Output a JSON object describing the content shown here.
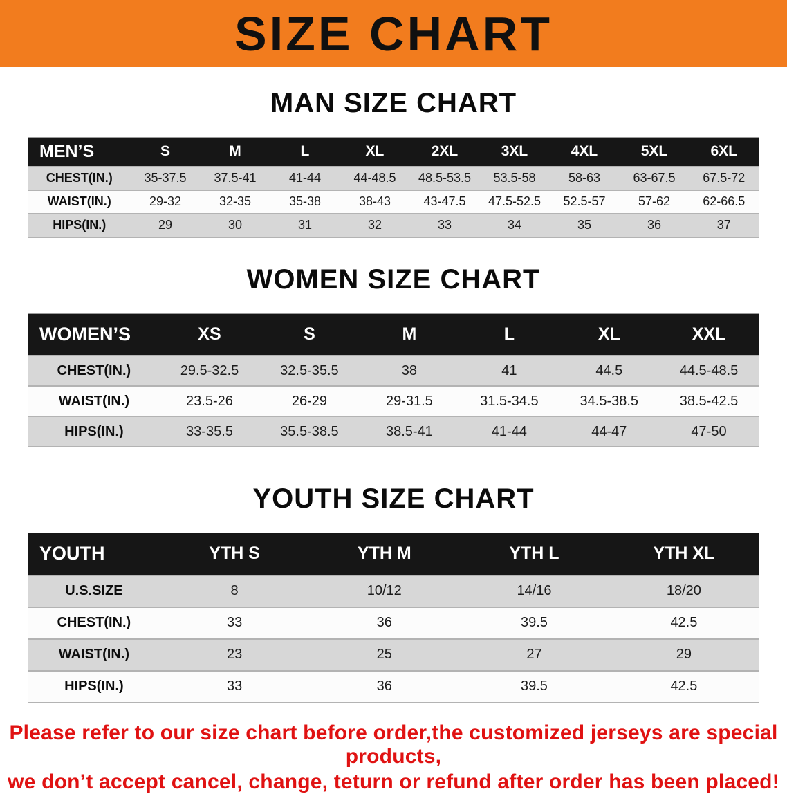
{
  "banner": {
    "title": "SIZE CHART"
  },
  "colors": {
    "banner_bg": "#f27c1e",
    "table_header_bg": "#161616",
    "row_shaded": "#d7d7d7",
    "row_plain": "#fcfcfc",
    "disclaimer_text": "#e01212"
  },
  "chart_data": [
    {
      "type": "table",
      "title": "MAN SIZE CHART",
      "header_label": "MEN’S",
      "columns": [
        "S",
        "M",
        "L",
        "XL",
        "2XL",
        "3XL",
        "4XL",
        "5XL",
        "6XL"
      ],
      "rows": [
        {
          "label": "CHEST(IN.)",
          "values": [
            "35-37.5",
            "37.5-41",
            "41-44",
            "44-48.5",
            "48.5-53.5",
            "53.5-58",
            "58-63",
            "63-67.5",
            "67.5-72"
          ]
        },
        {
          "label": "WAIST(IN.)",
          "values": [
            "29-32",
            "32-35",
            "35-38",
            "38-43",
            "43-47.5",
            "47.5-52.5",
            "52.5-57",
            "57-62",
            "62-66.5"
          ]
        },
        {
          "label": "HIPS(IN.)",
          "values": [
            "29",
            "30",
            "31",
            "32",
            "33",
            "34",
            "35",
            "36",
            "37"
          ]
        }
      ]
    },
    {
      "type": "table",
      "title": "WOMEN SIZE CHART",
      "header_label": "WOMEN’S",
      "columns": [
        "XS",
        "S",
        "M",
        "L",
        "XL",
        "XXL"
      ],
      "rows": [
        {
          "label": "CHEST(IN.)",
          "values": [
            "29.5-32.5",
            "32.5-35.5",
            "38",
            "41",
            "44.5",
            "44.5-48.5"
          ]
        },
        {
          "label": "WAIST(IN.)",
          "values": [
            "23.5-26",
            "26-29",
            "29-31.5",
            "31.5-34.5",
            "34.5-38.5",
            "38.5-42.5"
          ]
        },
        {
          "label": "HIPS(IN.)",
          "values": [
            "33-35.5",
            "35.5-38.5",
            "38.5-41",
            "41-44",
            "44-47",
            "47-50"
          ]
        }
      ]
    },
    {
      "type": "table",
      "title": "YOUTH SIZE CHART",
      "header_label": "YOUTH",
      "columns": [
        "YTH S",
        "YTH M",
        "YTH L",
        "YTH XL"
      ],
      "rows": [
        {
          "label": "U.S.SIZE",
          "values": [
            "8",
            "10/12",
            "14/16",
            "18/20"
          ]
        },
        {
          "label": "CHEST(IN.)",
          "values": [
            "33",
            "36",
            "39.5",
            "42.5"
          ]
        },
        {
          "label": "WAIST(IN.)",
          "values": [
            "23",
            "25",
            "27",
            "29"
          ]
        },
        {
          "label": "HIPS(IN.)",
          "values": [
            "33",
            "36",
            "39.5",
            "42.5"
          ]
        }
      ]
    }
  ],
  "disclaimer": {
    "line1": "Please refer to our size chart before order,the customized jerseys are special products,",
    "line2": "we don’t accept cancel, change, teturn or refund after order has been placed!"
  }
}
